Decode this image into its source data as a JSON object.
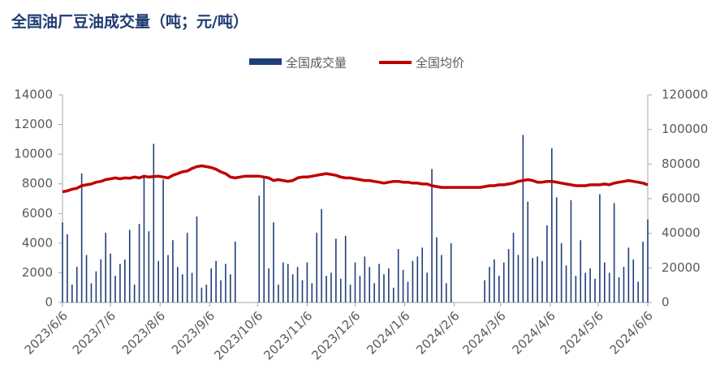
{
  "chart_data": {
    "type": "bar-line",
    "title": "全国油厂豆油成交量（吨；元/吨）",
    "x": [
      "2023/6/6",
      "2023/6/9",
      "2023/6/12",
      "2023/6/15",
      "2023/6/18",
      "2023/6/21",
      "2023/6/24",
      "2023/6/27",
      "2023/6/30",
      "2023/7/3",
      "2023/7/6",
      "2023/7/9",
      "2023/7/12",
      "2023/7/15",
      "2023/7/18",
      "2023/7/21",
      "2023/7/24",
      "2023/7/27",
      "2023/7/30",
      "2023/8/2",
      "2023/8/5",
      "2023/8/8",
      "2023/8/11",
      "2023/8/14",
      "2023/8/17",
      "2023/8/20",
      "2023/8/23",
      "2023/8/26",
      "2023/8/29",
      "2023/9/1",
      "2023/9/4",
      "2023/9/7",
      "2023/9/10",
      "2023/9/13",
      "2023/9/16",
      "2023/9/19",
      "2023/9/22",
      "2023/9/25",
      "2023/9/28",
      "2023/10/1",
      "2023/10/4",
      "2023/10/7",
      "2023/10/10",
      "2023/10/13",
      "2023/10/16",
      "2023/10/19",
      "2023/10/22",
      "2023/10/25",
      "2023/10/28",
      "2023/10/31",
      "2023/11/3",
      "2023/11/6",
      "2023/11/9",
      "2023/11/12",
      "2023/11/15",
      "2023/11/18",
      "2023/11/21",
      "2023/11/24",
      "2023/11/27",
      "2023/11/30",
      "2023/12/3",
      "2023/12/6",
      "2023/12/9",
      "2023/12/12",
      "2023/12/15",
      "2023/12/18",
      "2023/12/21",
      "2023/12/24",
      "2023/12/27",
      "2023/12/30",
      "2024/1/2",
      "2024/1/5",
      "2024/1/8",
      "2024/1/11",
      "2024/1/14",
      "2024/1/17",
      "2024/1/20",
      "2024/1/23",
      "2024/1/26",
      "2024/1/29",
      "2024/2/1",
      "2024/2/4",
      "2024/2/7",
      "2024/2/10",
      "2024/2/13",
      "2024/2/16",
      "2024/2/19",
      "2024/2/22",
      "2024/2/25",
      "2024/2/28",
      "2024/3/2",
      "2024/3/5",
      "2024/3/8",
      "2024/3/11",
      "2024/3/14",
      "2024/3/17",
      "2024/3/20",
      "2024/3/23",
      "2024/3/26",
      "2024/3/29",
      "2024/4/1",
      "2024/4/4",
      "2024/4/7",
      "2024/4/10",
      "2024/4/13",
      "2024/4/16",
      "2024/4/19",
      "2024/4/22",
      "2024/4/25",
      "2024/4/28",
      "2024/5/1",
      "2024/5/4",
      "2024/5/7",
      "2024/5/10",
      "2024/5/13",
      "2024/5/16",
      "2024/5/19",
      "2024/5/22",
      "2024/5/25",
      "2024/5/28",
      "2024/5/31",
      "2024/6/3",
      "2024/6/6"
    ],
    "series": [
      {
        "name": "全国成交量",
        "kind": "bar",
        "color": "#1f3f7a",
        "values": [
          5400,
          4600,
          1200,
          2400,
          8700,
          3200,
          1300,
          2100,
          2900,
          4700,
          3300,
          1800,
          2600,
          2900,
          4900,
          1200,
          5300,
          8600,
          4800,
          10700,
          2800,
          8300,
          3200,
          4200,
          2400,
          1900,
          4700,
          2000,
          5800,
          1000,
          1200,
          2300,
          2800,
          1500,
          2600,
          1900,
          4100,
          0,
          0,
          0,
          0,
          7200,
          8500,
          2300,
          5400,
          1200,
          2700,
          2600,
          1900,
          2400,
          1500,
          2700,
          1300,
          4700,
          6300,
          1800,
          2000,
          4300,
          1600,
          4500,
          1200,
          2700,
          1800,
          3100,
          2400,
          1300,
          2600,
          1900,
          2300,
          1000,
          3600,
          2200,
          1400,
          2800,
          3100,
          3700,
          2000,
          9000,
          4400,
          3200,
          1300,
          4000,
          0,
          0,
          0,
          0,
          0,
          0,
          1500,
          2400,
          2900,
          1800,
          2700,
          3600,
          4700,
          3200,
          11300,
          6800,
          3000,
          3100,
          2800,
          5200,
          10400,
          7100,
          4000,
          2500,
          6900,
          1800,
          4200,
          2000,
          2300,
          1600,
          7300,
          2700,
          2000,
          6700,
          1700,
          2400,
          3700,
          2900,
          1400,
          4100,
          5600
        ]
      },
      {
        "name": "全国均价",
        "kind": "line",
        "axis": "y2",
        "color": "#c00000",
        "values": [
          64000,
          64500,
          65500,
          66000,
          67500,
          68000,
          68500,
          69500,
          70000,
          71000,
          71500,
          72000,
          71500,
          72000,
          71800,
          72500,
          72000,
          73000,
          72500,
          72800,
          73000,
          72500,
          72000,
          73500,
          74500,
          75500,
          76000,
          77500,
          78500,
          79000,
          78500,
          78000,
          77000,
          75500,
          74500,
          72500,
          72000,
          72500,
          73000,
          73000,
          73000,
          73000,
          72500,
          72000,
          70500,
          71000,
          70500,
          70000,
          70500,
          72000,
          72500,
          72500,
          73000,
          73500,
          74000,
          74500,
          74000,
          73500,
          72500,
          72000,
          72000,
          71500,
          71000,
          70500,
          70500,
          70000,
          69500,
          69000,
          69500,
          70000,
          70000,
          69500,
          69500,
          69000,
          69000,
          68500,
          68500,
          67500,
          67000,
          66500,
          66500,
          66500,
          66500,
          66500,
          66500,
          66500,
          66500,
          66500,
          67000,
          67500,
          67500,
          68000,
          68000,
          68500,
          69000,
          70000,
          70500,
          71000,
          70500,
          69500,
          69500,
          70000,
          70000,
          69500,
          69000,
          68500,
          68000,
          67500,
          67500,
          67500,
          68000,
          68000,
          68000,
          68500,
          68000,
          69000,
          69500,
          70000,
          70500,
          70000,
          69500,
          69000,
          68000
        ]
      }
    ],
    "xlim": [
      "2023/6/6",
      "2024/6/6"
    ],
    "xticks": [
      "2023/6/6",
      "2023/7/6",
      "2023/8/6",
      "2023/9/6",
      "2023/10/6",
      "2023/11/6",
      "2023/12/6",
      "2024/1/6",
      "2024/2/6",
      "2024/3/6",
      "2024/4/6",
      "2024/5/6",
      "2024/6/6"
    ],
    "ylim": [
      0,
      14000
    ],
    "yticks": [
      0,
      2000,
      4000,
      6000,
      8000,
      10000,
      12000,
      14000
    ],
    "y2lim": [
      0,
      120000
    ],
    "y2ticks": [
      0,
      20000,
      40000,
      60000,
      80000,
      100000,
      120000
    ],
    "legend": "top"
  }
}
